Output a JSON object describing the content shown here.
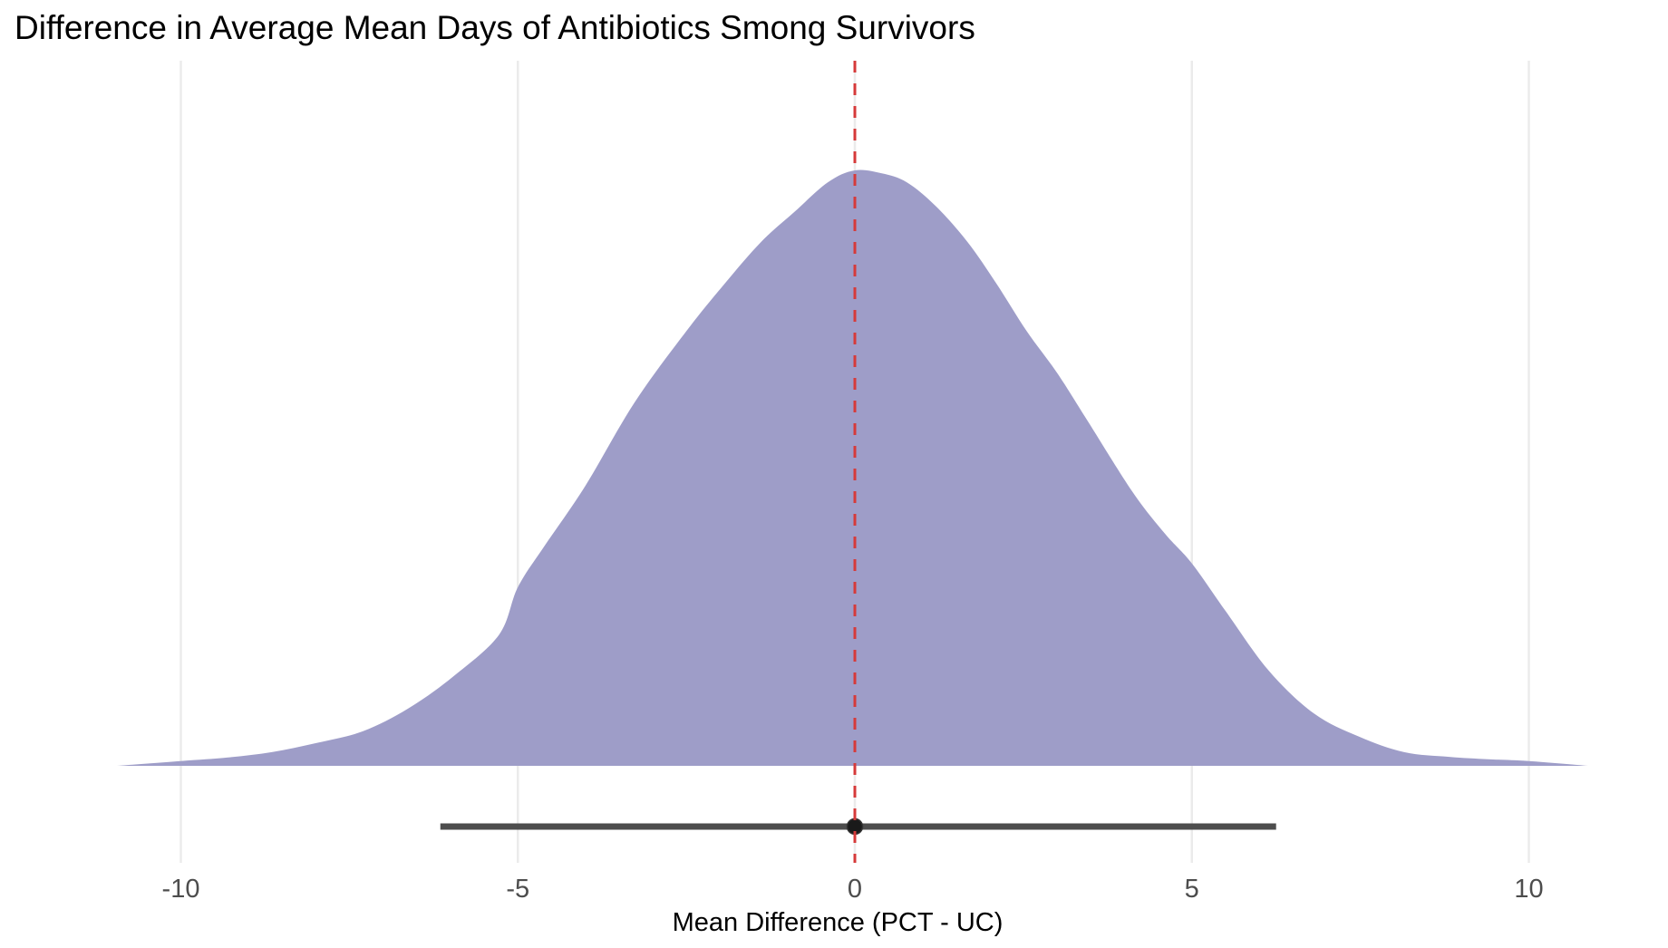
{
  "chart_data": {
    "type": "area",
    "subtype": "density-with-interval",
    "title": "Difference in Average Mean Days of Antibiotics Smong Survivors",
    "xlabel": "Mean Difference (PCT - UC)",
    "ylabel": "",
    "xlim": [
      -11,
      11
    ],
    "x_ticks": [
      -10,
      -5,
      0,
      5,
      10
    ],
    "x_tick_labels": [
      "-10",
      "-5",
      "0",
      "5",
      "10"
    ],
    "grid": "vertical major gridlines only",
    "legend": "none",
    "density": {
      "name": "posterior difference density",
      "fill_color": "#9e9dc8",
      "y_scale": "relative (peak = 1)",
      "x": [
        -10.95,
        -10.0,
        -9.3,
        -8.65,
        -8.0,
        -7.3,
        -6.63,
        -5.96,
        -5.28,
        -5.0,
        -4.6,
        -4.0,
        -3.27,
        -2.5,
        -1.93,
        -1.39,
        -0.9,
        -0.4,
        0.0,
        0.4,
        0.77,
        1.2,
        1.67,
        2.1,
        2.55,
        3.0,
        3.45,
        4.12,
        4.6,
        5.0,
        5.5,
        6.14,
        6.81,
        7.48,
        8.15,
        8.82,
        9.4,
        10.0,
        10.88
      ],
      "y": [
        0.0,
        0.008,
        0.014,
        0.023,
        0.038,
        0.058,
        0.096,
        0.15,
        0.22,
        0.3,
        0.37,
        0.47,
        0.61,
        0.73,
        0.81,
        0.88,
        0.93,
        0.98,
        1.0,
        0.995,
        0.98,
        0.94,
        0.88,
        0.81,
        0.73,
        0.66,
        0.58,
        0.46,
        0.39,
        0.34,
        0.26,
        0.16,
        0.088,
        0.049,
        0.023,
        0.015,
        0.011,
        0.008,
        0.0
      ]
    },
    "interval": {
      "name": "point estimate and interval",
      "point": 0.0,
      "lower": -6.15,
      "upper": 6.25,
      "color": "#4d4d4d"
    },
    "reference_line": {
      "x": 0,
      "style": "dashed",
      "color": "#d63a3a"
    }
  }
}
